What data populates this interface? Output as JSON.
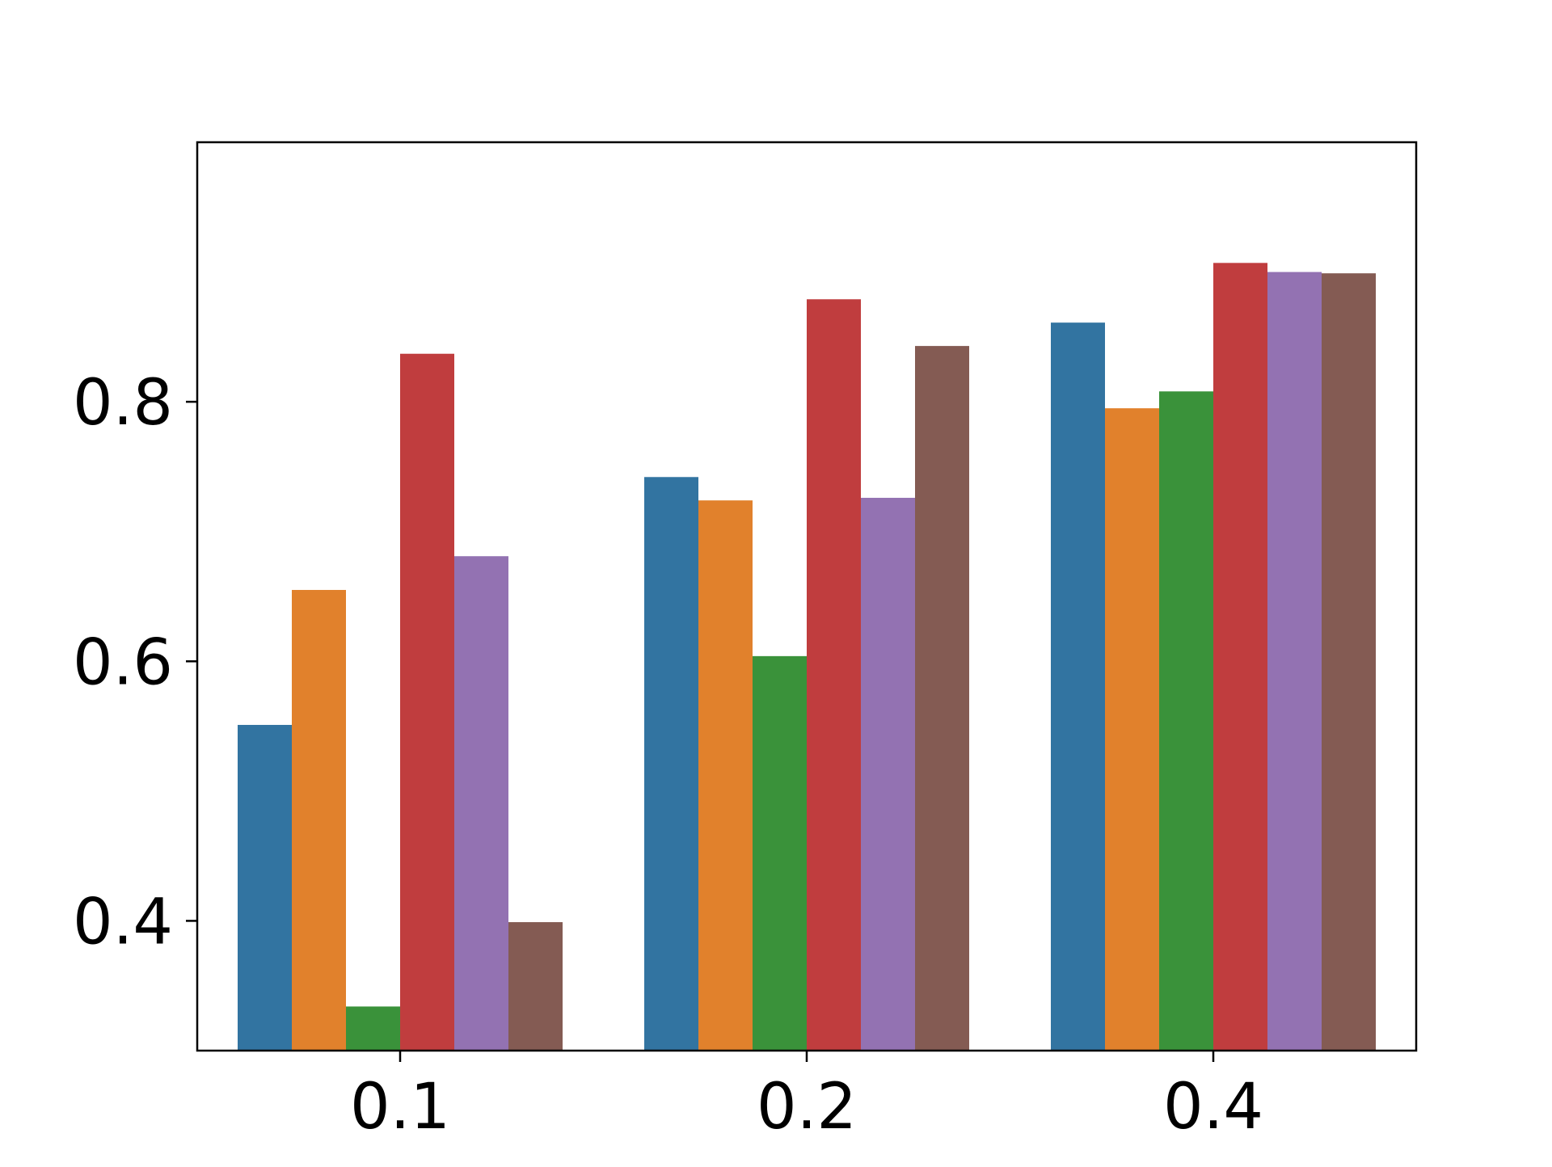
{
  "chart_data": {
    "type": "bar",
    "title": "",
    "xlabel": "",
    "ylabel": "",
    "categories": [
      "0.1",
      "0.2",
      "0.4"
    ],
    "ylim": [
      0.3,
      1.0
    ],
    "y_ticks": [
      {
        "value": 0.4,
        "label": "0.4"
      },
      {
        "value": 0.6,
        "label": "0.6"
      },
      {
        "value": 0.8,
        "label": "0.8"
      }
    ],
    "grid": false,
    "legend": "none",
    "series": [
      {
        "color": "#3274a1",
        "values": [
          0.551,
          0.742,
          0.861
        ]
      },
      {
        "color": "#e1812c",
        "values": [
          0.655,
          0.724,
          0.795
        ]
      },
      {
        "color": "#3a923a",
        "values": [
          0.334,
          0.604,
          0.808
        ]
      },
      {
        "color": "#c03d3e",
        "values": [
          0.837,
          0.879,
          0.907
        ]
      },
      {
        "color": "#9372b2",
        "values": [
          0.681,
          0.726,
          0.9
        ]
      },
      {
        "color": "#845b53",
        "values": [
          0.399,
          0.843,
          0.899
        ]
      }
    ]
  }
}
